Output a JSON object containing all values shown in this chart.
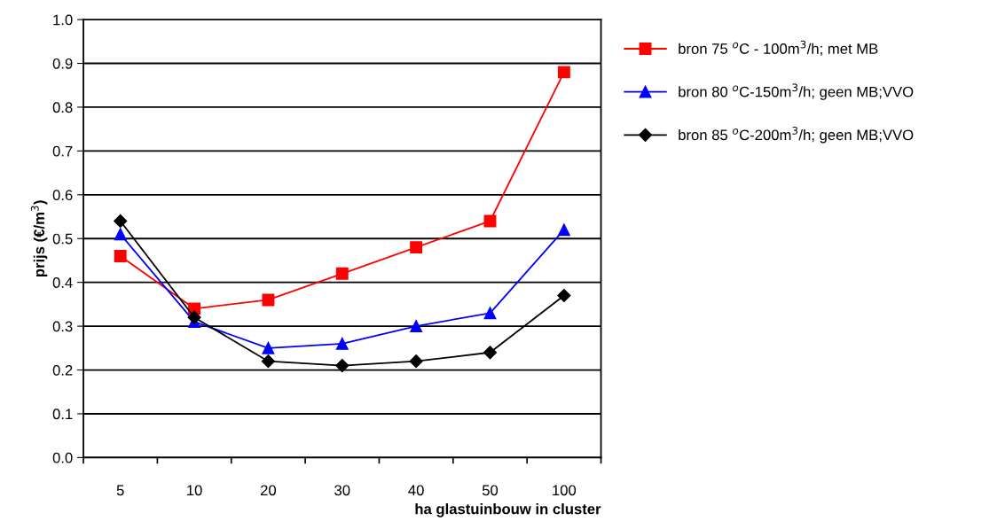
{
  "chart_data": {
    "type": "line",
    "xlabel": "ha glastuinbouw in cluster",
    "ylabel": "prijs (€/m$^{3}$)",
    "categories": [
      "5",
      "10",
      "20",
      "30",
      "40",
      "50",
      "100"
    ],
    "series": [
      {
        "name": "bron 75 $^{o}$C - 100m$^{3}$/h; met MB",
        "color": "#ff0000",
        "marker": "square",
        "values": [
          0.46,
          0.34,
          0.36,
          0.42,
          0.48,
          0.54,
          0.88
        ]
      },
      {
        "name": "bron 80 $^{o}$C-150m$^{3}$/h; geen MB;VVO",
        "color": "#0000ff",
        "marker": "triangle",
        "values": [
          0.51,
          0.31,
          0.25,
          0.26,
          0.3,
          0.33,
          0.52
        ]
      },
      {
        "name": "bron 85 $^{o}$C-200m$^{3}$/h; geen MB;VVO",
        "color": "#000000",
        "marker": "diamond",
        "values": [
          0.54,
          0.32,
          0.22,
          0.21,
          0.22,
          0.24,
          0.37
        ]
      }
    ],
    "ylim": [
      0,
      1
    ],
    "yticks": [
      {
        "value": 0,
        "label": "0.0"
      },
      0.1,
      0.2,
      0.3,
      0.4,
      0.5,
      0.6,
      0.7,
      0.8,
      0.9,
      {
        "value": 1,
        "label": "1.0"
      }
    ],
    "grid": "y",
    "legend": "right"
  }
}
